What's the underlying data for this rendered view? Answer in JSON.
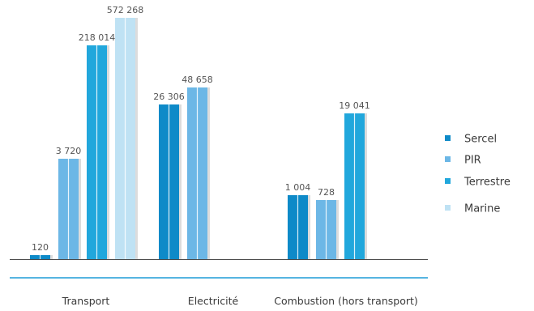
{
  "chart_data": {
    "type": "bar",
    "title": "",
    "xlabel": "",
    "ylabel": "",
    "categories": [
      "Transport",
      "Electricité",
      "Combustion (hors transport)"
    ],
    "series": [
      {
        "name": "Sercel",
        "color": "#0e8ac8",
        "values": [
          120,
          26306,
          1004
        ],
        "labels": [
          "120",
          "26 306",
          "1 004"
        ]
      },
      {
        "name": "PIR",
        "color": "#6cb7e6",
        "values": [
          3720,
          48658,
          728
        ],
        "labels": [
          "3 720",
          "48 658",
          "728"
        ]
      },
      {
        "name": "Terrestre",
        "color": "#21a7dc",
        "values": [
          218014,
          null,
          19041
        ],
        "labels": [
          "218 014",
          "",
          "19 041"
        ]
      },
      {
        "name": "Marine",
        "color": "#bfe2f4",
        "values": [
          572268,
          null,
          null
        ],
        "labels": [
          "572 268",
          "",
          ""
        ]
      }
    ],
    "legend_position": "right",
    "grid": false
  }
}
